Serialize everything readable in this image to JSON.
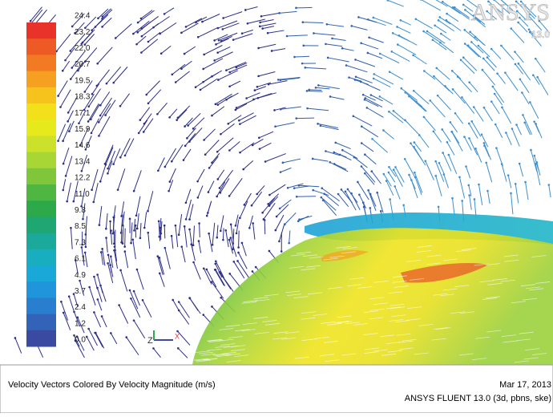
{
  "logo": {
    "brand": "ANSYS",
    "version": "13.0"
  },
  "legend": {
    "labels": [
      "24.4",
      "23.2",
      "22.0",
      "20.7",
      "19.5",
      "18.3",
      "17.1",
      "15.9",
      "14.6",
      "13.4",
      "12.2",
      "11.0",
      "9.8",
      "8.5",
      "7.3",
      "6.1",
      "4.9",
      "3.7",
      "2.4",
      "1.2",
      "0.0"
    ],
    "colors": [
      "#e8322a",
      "#ee5a25",
      "#f27a22",
      "#f5a020",
      "#f6c21c",
      "#f2e01a",
      "#e6ea1c",
      "#cce22a",
      "#a8d634",
      "#7fc63a",
      "#4eb641",
      "#2ea94a",
      "#1fa672",
      "#1aa99a",
      "#19adc0",
      "#1aa8d8",
      "#2095dc",
      "#2a7ed0",
      "#3363b8",
      "#3a4aa0"
    ]
  },
  "axis_triad": {
    "z": "Z",
    "x": "X"
  },
  "footer": {
    "title": "Velocity Vectors Colored By Velocity Magnitude (m/s)",
    "date": "Mar 17, 2013",
    "software": "ANSYS FLUENT 13.0 (3d, pbns, ske)"
  }
}
